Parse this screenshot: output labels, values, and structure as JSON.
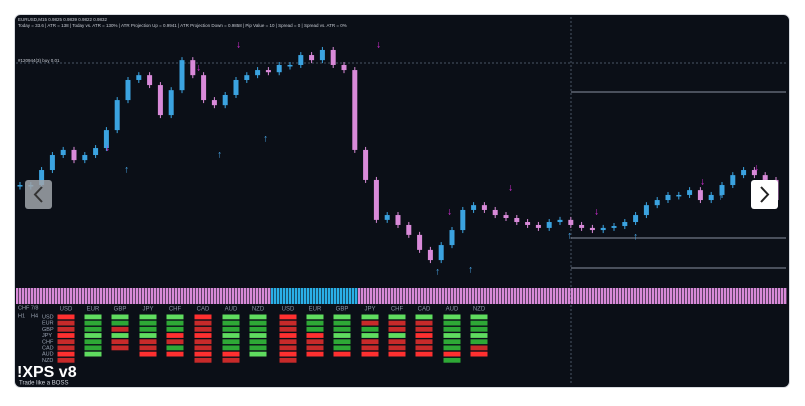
{
  "header": {
    "symbol_line": "EURUSD,M15 0.9825 0.9839 0.9822 0.9832",
    "stats_line": "Today = 33.6  |  ATR = 138  |  Today vs. ATR = 130%  |  ATR Projection Up = 0.9941  |  ATR Projection Down = 0.9858  |  Pip Value = 10  |  Spread = 0  |  Spread vs. ATR = 0%"
  },
  "chart": {
    "type": "candlestick",
    "ylim": [
      0,
      100
    ],
    "up_color": "#3ba3e0",
    "down_color": "#d98ad9",
    "order_label": "#120944(3) buy 0.01",
    "closes": [
      37.3,
      37.3,
      42.9,
      48.5,
      50.4,
      46.6,
      48.5,
      51.1,
      57.8,
      69.0,
      76.5,
      78.3,
      74.6,
      63.4,
      72.7,
      83.9,
      78.3,
      69.0,
      67.1,
      70.9,
      76.5,
      78.3,
      80.2,
      79.4,
      82.1,
      82.1,
      85.8,
      83.9,
      87.7,
      82.1,
      80.2,
      50.4,
      39.2,
      24.3,
      26.1,
      22.4,
      18.7,
      13.1,
      9.3,
      14.9,
      20.5,
      28.0,
      29.8,
      28.0,
      26.1,
      25.0,
      23.5,
      22.4,
      21.3,
      23.5,
      24.3,
      22.4,
      21.3,
      20.5,
      21.3,
      22.0,
      23.5,
      26.1,
      29.8,
      31.7,
      33.6,
      33.6,
      35.4,
      31.7,
      33.6,
      37.3,
      41.0,
      42.9,
      41.0,
      39.2,
      31.7
    ]
  },
  "strength": {
    "pair_label": "CHF 7/8",
    "timeframes": [
      "H1",
      "H4"
    ],
    "columns_h1": [
      "USD",
      "EUR",
      "GBP",
      "JPY",
      "CHF",
      "CAD",
      "AUD",
      "NZD"
    ],
    "columns_h4": [
      "USD",
      "EUR",
      "GBP",
      "JPY",
      "CHF",
      "CAD",
      "AUD",
      "NZD"
    ],
    "rows": [
      "USD",
      "EUR",
      "GBP",
      "JPY",
      "CHF",
      "CAD",
      "AUD",
      "NZD"
    ]
  },
  "logo": {
    "title": "!XPS v8",
    "tagline": "Trade like a BOSS"
  }
}
